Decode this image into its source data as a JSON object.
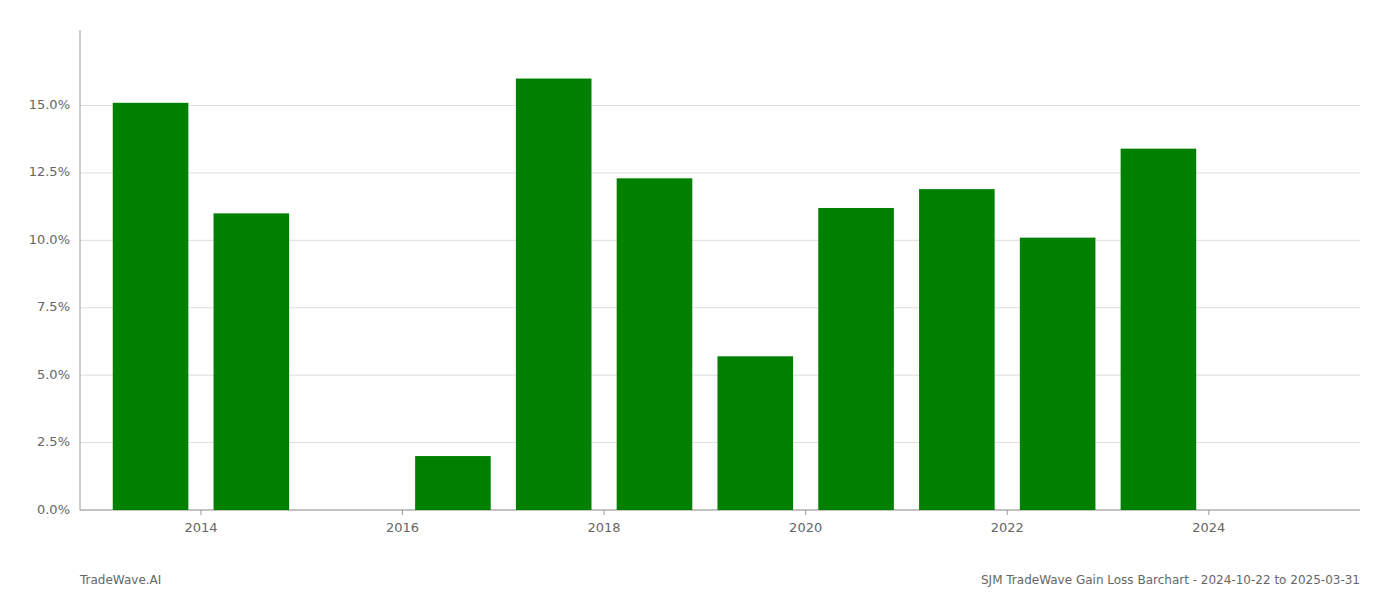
{
  "chart_data": {
    "type": "bar",
    "x": [
      2013,
      2014,
      2016,
      2017,
      2018,
      2019,
      2020,
      2021,
      2022,
      2023
    ],
    "values": [
      0.151,
      0.11,
      0.02,
      0.16,
      0.123,
      0.057,
      0.112,
      0.119,
      0.101,
      0.134
    ],
    "color": "#008000",
    "xlim": [
      2012.3,
      2025.0
    ],
    "ylim": [
      0,
      0.178
    ],
    "xticks": [
      {
        "value": 2013.5,
        "label": "2014"
      },
      {
        "value": 2015.5,
        "label": "2016"
      },
      {
        "value": 2017.5,
        "label": "2018"
      },
      {
        "value": 2019.5,
        "label": "2020"
      },
      {
        "value": 2021.5,
        "label": "2022"
      },
      {
        "value": 2023.5,
        "label": "2024"
      }
    ],
    "yticks": [
      {
        "value": 0.0,
        "label": "0.0%"
      },
      {
        "value": 0.025,
        "label": "2.5%"
      },
      {
        "value": 0.05,
        "label": "5.0%"
      },
      {
        "value": 0.075,
        "label": "7.5%"
      },
      {
        "value": 0.1,
        "label": "10.0%"
      },
      {
        "value": 0.125,
        "label": "12.5%"
      },
      {
        "value": 0.15,
        "label": "15.0%"
      }
    ],
    "annotations": [
      "TradeWave.AI",
      "SJM TradeWave Gain Loss Barchart - 2024-10-22 to 2025-03-31"
    ],
    "grid": true
  }
}
